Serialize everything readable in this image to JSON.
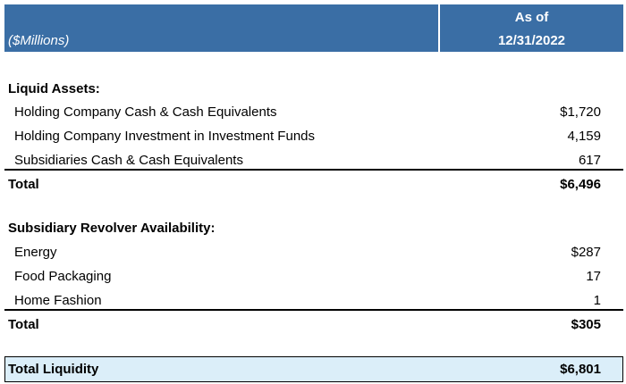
{
  "header": {
    "unit_label": "($Millions)",
    "column_title": [
      "As of",
      "12/31/2022"
    ]
  },
  "sections": [
    {
      "title": "Liquid Assets:",
      "rows": [
        {
          "label": "Holding Company Cash & Cash Equivalents",
          "value": "$1,720"
        },
        {
          "label": "Holding Company Investment in Investment Funds",
          "value": "4,159"
        },
        {
          "label": "Subsidiaries Cash & Cash Equivalents",
          "value": "617"
        }
      ],
      "total": {
        "label": "Total",
        "value": "$6,496"
      }
    },
    {
      "title": "Subsidiary Revolver Availability:",
      "rows": [
        {
          "label": "Energy",
          "value": "$287"
        },
        {
          "label": "Food Packaging",
          "value": "17"
        },
        {
          "label": "Home Fashion",
          "value": "1"
        }
      ],
      "total": {
        "label": "Total",
        "value": "$305"
      }
    }
  ],
  "grand_total": {
    "label": "Total Liquidity",
    "value": "$6,801"
  }
}
